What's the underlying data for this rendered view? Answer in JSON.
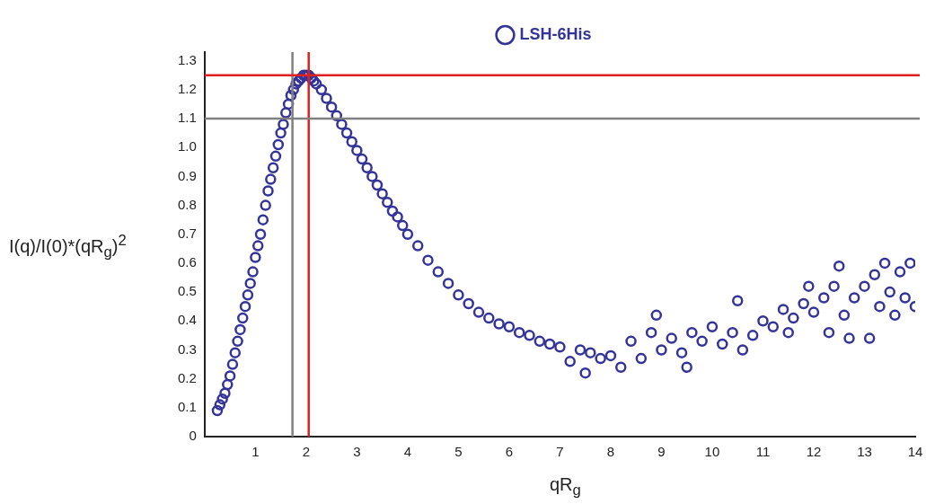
{
  "chart_data": {
    "type": "scatter",
    "xlabel": "qR$_{g}$",
    "ylabel": "I(q)/I(0)*(qR$_{g}$)$^{2}$",
    "legend": "top",
    "marker": "circle",
    "grid": false,
    "xlim": [
      0,
      14
    ],
    "xticks": [
      1,
      2,
      3,
      4,
      5,
      6,
      7,
      8,
      9,
      10,
      11,
      12,
      13,
      14
    ],
    "ylim": [
      0,
      1.33
    ],
    "yticks": [
      0,
      0.1,
      0.2,
      0.3,
      0.4,
      0.5,
      0.6,
      0.7,
      0.8,
      0.9,
      {
        "value": 1,
        "label": "1.0"
      },
      1.1,
      1.2,
      1.3
    ],
    "ref_lines": [
      {
        "axis": "x",
        "value": 1.73,
        "color": "#808080"
      },
      {
        "axis": "x",
        "value": 2.05,
        "color": "#e02020"
      },
      {
        "axis": "y",
        "value": 1.25,
        "color": "#e02020"
      },
      {
        "axis": "y",
        "value": 1.1,
        "color": "#808080"
      }
    ],
    "series": [
      {
        "name": "LSH-6His",
        "color": "#333399",
        "x": [
          0.25,
          0.3,
          0.35,
          0.4,
          0.45,
          0.5,
          0.55,
          0.6,
          0.65,
          0.7,
          0.75,
          0.8,
          0.85,
          0.9,
          0.95,
          1.0,
          1.05,
          1.1,
          1.15,
          1.2,
          1.25,
          1.3,
          1.35,
          1.4,
          1.45,
          1.5,
          1.55,
          1.6,
          1.65,
          1.7,
          1.75,
          1.8,
          1.85,
          1.9,
          1.95,
          2.0,
          2.05,
          2.1,
          2.15,
          2.2,
          2.3,
          2.4,
          2.5,
          2.6,
          2.7,
          2.8,
          2.9,
          3.0,
          3.1,
          3.2,
          3.3,
          3.4,
          3.5,
          3.6,
          3.7,
          3.8,
          3.9,
          4.0,
          4.2,
          4.4,
          4.6,
          4.8,
          5.0,
          5.2,
          5.4,
          5.6,
          5.8,
          6.0,
          6.2,
          6.4,
          6.6,
          6.8,
          7.0,
          7.2,
          7.4,
          7.5,
          7.6,
          7.8,
          8.0,
          8.2,
          8.4,
          8.6,
          8.8,
          8.9,
          9.0,
          9.2,
          9.4,
          9.5,
          9.6,
          9.8,
          10.0,
          10.2,
          10.4,
          10.5,
          10.6,
          10.8,
          11.0,
          11.2,
          11.4,
          11.5,
          11.6,
          11.8,
          11.9,
          12.0,
          12.2,
          12.3,
          12.4,
          12.5,
          12.6,
          12.7,
          12.8,
          13.0,
          13.1,
          13.2,
          13.3,
          13.4,
          13.5,
          13.6,
          13.7,
          13.8,
          13.9,
          14.0
        ],
        "values": [
          0.09,
          0.11,
          0.13,
          0.15,
          0.18,
          0.21,
          0.25,
          0.29,
          0.33,
          0.37,
          0.41,
          0.45,
          0.49,
          0.53,
          0.57,
          0.62,
          0.66,
          0.7,
          0.75,
          0.8,
          0.85,
          0.89,
          0.93,
          0.97,
          1.01,
          1.05,
          1.08,
          1.12,
          1.15,
          1.18,
          1.2,
          1.22,
          1.23,
          1.24,
          1.25,
          1.25,
          1.25,
          1.24,
          1.23,
          1.22,
          1.2,
          1.17,
          1.14,
          1.11,
          1.08,
          1.05,
          1.02,
          0.99,
          0.96,
          0.93,
          0.9,
          0.87,
          0.84,
          0.81,
          0.78,
          0.76,
          0.73,
          0.7,
          0.66,
          0.61,
          0.57,
          0.53,
          0.49,
          0.46,
          0.43,
          0.41,
          0.39,
          0.38,
          0.36,
          0.35,
          0.33,
          0.32,
          0.31,
          0.26,
          0.3,
          0.22,
          0.29,
          0.27,
          0.28,
          0.24,
          0.33,
          0.27,
          0.36,
          0.42,
          0.3,
          0.34,
          0.29,
          0.24,
          0.36,
          0.33,
          0.38,
          0.32,
          0.36,
          0.47,
          0.3,
          0.35,
          0.4,
          0.38,
          0.44,
          0.36,
          0.41,
          0.46,
          0.52,
          0.43,
          0.48,
          0.36,
          0.52,
          0.59,
          0.42,
          0.34,
          0.48,
          0.52,
          0.34,
          0.56,
          0.45,
          0.6,
          0.5,
          0.42,
          0.57,
          0.48,
          0.6,
          0.45
        ]
      }
    ]
  }
}
